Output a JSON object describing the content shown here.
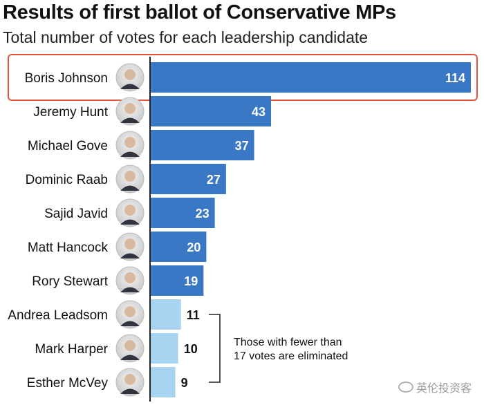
{
  "chart_data": {
    "type": "bar",
    "orientation": "horizontal",
    "title": "Results of first ballot of Conservative MPs",
    "subtitle": "Total number of votes for each leadership candidate",
    "categories": [
      "Boris Johnson",
      "Jeremy Hunt",
      "Michael Gove",
      "Dominic Raab",
      "Sajid Javid",
      "Matt Hancock",
      "Rory Stewart",
      "Andrea Leadsom",
      "Mark Harper",
      "Esther McVey"
    ],
    "values": [
      114,
      43,
      37,
      27,
      23,
      20,
      19,
      11,
      10,
      9
    ],
    "eliminated": [
      false,
      false,
      false,
      false,
      false,
      false,
      false,
      true,
      true,
      true
    ],
    "highlighted": "Boris Johnson",
    "xlim": [
      0,
      114
    ],
    "grid": false,
    "annotation": [
      "Those with fewer than",
      "17 votes are eliminated"
    ]
  },
  "colors": {
    "advanced": "#3a78c6",
    "eliminated": "#a9d4f1",
    "highlight_box": "#e8523a",
    "axis": "#222222"
  },
  "watermark": "英伦投资客"
}
